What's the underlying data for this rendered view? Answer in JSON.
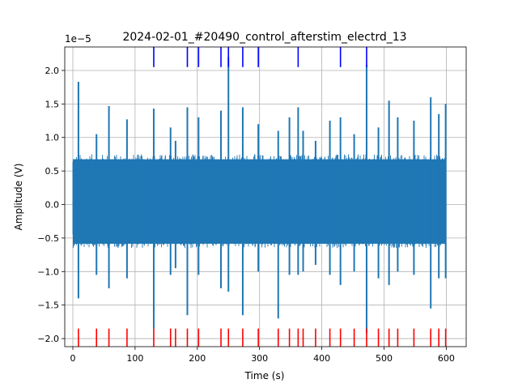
{
  "chart_data": {
    "type": "line",
    "title": "2024-02-01_#20490_control_afterstim_electrd_13",
    "xlabel": "Time (s)",
    "ylabel": "Amplitude (V)",
    "offset_label": "1e−5",
    "xlim": [
      -13,
      632
    ],
    "ylim": [
      -2.12,
      2.35
    ],
    "x_ticks": [
      0,
      100,
      200,
      300,
      400,
      500,
      600
    ],
    "x_tick_labels": [
      "0",
      "100",
      "200",
      "300",
      "400",
      "500",
      "600"
    ],
    "y_ticks": [
      -2.0,
      -1.5,
      -1.0,
      -0.5,
      0.0,
      0.5,
      1.0,
      1.5,
      2.0
    ],
    "y_tick_labels": [
      "−2.0",
      "−1.5",
      "−1.0",
      "−0.5",
      "0.0",
      "0.5",
      "1.0",
      "1.5",
      "2.0"
    ],
    "grid": true,
    "signal": {
      "color": "#1f77b4",
      "x_range": [
        0,
        600
      ],
      "baseline_band": [
        -0.65,
        0.75
      ],
      "spikes": [
        {
          "t": 9,
          "max": 1.83,
          "min": -1.4
        },
        {
          "t": 38,
          "max": 1.05,
          "min": -1.05
        },
        {
          "t": 58,
          "max": 1.47,
          "min": -1.25
        },
        {
          "t": 87,
          "max": 1.27,
          "min": -1.1
        },
        {
          "t": 130,
          "max": 1.43,
          "min": -1.85
        },
        {
          "t": 157,
          "max": 1.15,
          "min": -1.05
        },
        {
          "t": 165,
          "max": 0.95,
          "min": -0.95
        },
        {
          "t": 184,
          "max": 1.45,
          "min": -1.65
        },
        {
          "t": 202,
          "max": 1.3,
          "min": -1.05
        },
        {
          "t": 238,
          "max": 1.4,
          "min": -1.25
        },
        {
          "t": 250,
          "max": 2.2,
          "min": -1.3
        },
        {
          "t": 273,
          "max": 1.45,
          "min": -1.65
        },
        {
          "t": 298,
          "max": 1.2,
          "min": -1.0
        },
        {
          "t": 330,
          "max": 1.1,
          "min": -1.7
        },
        {
          "t": 348,
          "max": 1.3,
          "min": -1.05
        },
        {
          "t": 362,
          "max": 1.45,
          "min": -1.05
        },
        {
          "t": 370,
          "max": 1.1,
          "min": -1.0
        },
        {
          "t": 390,
          "max": 0.95,
          "min": -0.9
        },
        {
          "t": 413,
          "max": 1.25,
          "min": -1.05
        },
        {
          "t": 430,
          "max": 1.3,
          "min": -1.2
        },
        {
          "t": 452,
          "max": 1.05,
          "min": -1.0
        },
        {
          "t": 472,
          "max": 2.08,
          "min": -1.92
        },
        {
          "t": 491,
          "max": 1.15,
          "min": -1.1
        },
        {
          "t": 508,
          "max": 1.55,
          "min": -1.2
        },
        {
          "t": 522,
          "max": 1.3,
          "min": -1.0
        },
        {
          "t": 548,
          "max": 1.25,
          "min": -1.05
        },
        {
          "t": 575,
          "max": 1.6,
          "min": -1.55
        },
        {
          "t": 588,
          "max": 1.35,
          "min": -1.1
        },
        {
          "t": 599,
          "max": 1.5,
          "min": -1.1
        }
      ]
    },
    "markers_blue": {
      "color": "#0000ff",
      "y_range": [
        2.05,
        2.35
      ],
      "x": [
        130,
        184,
        202,
        238,
        250,
        273,
        298,
        362,
        430,
        472
      ]
    },
    "markers_red": {
      "color": "#ff0000",
      "y_range": [
        -2.12,
        -1.85
      ],
      "x": [
        9,
        38,
        58,
        87,
        130,
        157,
        165,
        184,
        202,
        238,
        250,
        273,
        298,
        330,
        348,
        362,
        370,
        390,
        413,
        430,
        452,
        472,
        491,
        508,
        522,
        548,
        575,
        588,
        599
      ]
    }
  }
}
